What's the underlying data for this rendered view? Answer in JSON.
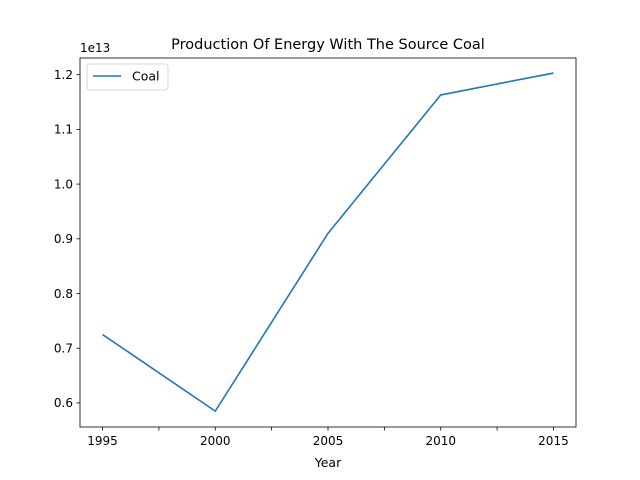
{
  "chart_data": {
    "type": "line",
    "title": "Production Of Energy With The Source Coal",
    "xlabel": "Year",
    "ylabel": "",
    "y_offset_label": "1e13",
    "y_scale_factor": 10000000000000.0,
    "x": [
      1995,
      2000,
      2005,
      2010,
      2015
    ],
    "series": [
      {
        "name": "Coal",
        "color": "#1f77b4",
        "values": [
          7250000000000.0,
          5850000000000.0,
          9100000000000.0,
          11630000000000.0,
          12030000000000.0
        ]
      }
    ],
    "xlim": [
      1994,
      2016
    ],
    "ylim": [
      5560000000000.0,
      12305000000000.0
    ],
    "x_ticks": [
      1995,
      1997.5,
      2000,
      2002.5,
      2005,
      2007.5,
      2010,
      2012.5,
      2015
    ],
    "x_tick_labels": [
      "1995",
      "",
      "2000",
      "",
      "2005",
      "",
      "2010",
      "",
      "2015"
    ],
    "y_ticks": [
      0.6,
      0.7,
      0.8,
      0.9,
      1.0,
      1.1,
      1.2
    ],
    "y_tick_labels": [
      "0.6",
      "0.7",
      "0.8",
      "0.9",
      "1.0",
      "1.1",
      "1.2"
    ],
    "grid": false,
    "legend_position": "top-left"
  }
}
